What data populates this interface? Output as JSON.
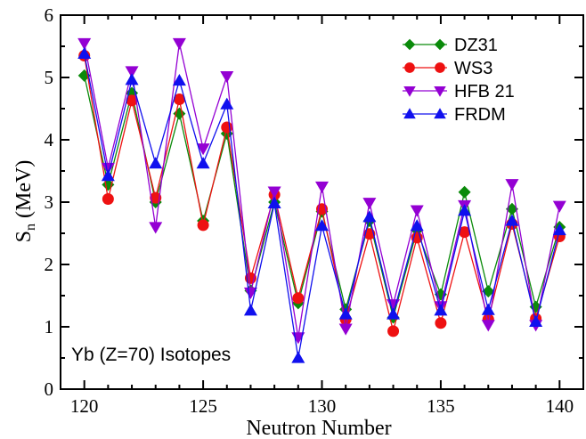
{
  "chart_data": {
    "type": "line",
    "xlabel": "Neutron Number",
    "ylabel_main": "S",
    "ylabel_sub": "n",
    "ylabel_unit": " (MeV)",
    "xlim": [
      119,
      141
    ],
    "ylim": [
      0,
      6
    ],
    "xticks": [
      120,
      125,
      130,
      135,
      140
    ],
    "yticks": [
      0,
      1,
      2,
      3,
      4,
      5,
      6
    ],
    "grid": false,
    "legend_position": "top-right",
    "annotation": "Yb (Z=70) Isotopes",
    "x": [
      120,
      121,
      122,
      123,
      124,
      125,
      126,
      127,
      128,
      129,
      130,
      131,
      132,
      133,
      134,
      135,
      136,
      137,
      138,
      139,
      140
    ],
    "series": [
      {
        "name": "DZ31",
        "color": "#0a8a0a",
        "marker": "diamond",
        "values": [
          5.03,
          3.28,
          4.75,
          3.0,
          4.42,
          2.7,
          4.1,
          1.58,
          3.0,
          1.38,
          2.85,
          1.28,
          2.7,
          1.15,
          2.55,
          1.52,
          3.16,
          1.57,
          2.89,
          1.32,
          2.6
        ]
      },
      {
        "name": "WS3",
        "color": "#ee1111",
        "marker": "circle",
        "values": [
          5.35,
          3.05,
          4.63,
          3.07,
          4.65,
          2.63,
          4.2,
          1.78,
          3.12,
          1.46,
          2.89,
          1.12,
          2.49,
          0.93,
          2.43,
          1.06,
          2.52,
          1.12,
          2.65,
          1.13,
          2.45
        ]
      },
      {
        "name": "HFB 21",
        "color": "#9400d3",
        "marker": "triangle-down",
        "values": [
          5.55,
          3.55,
          5.1,
          2.6,
          5.55,
          3.86,
          5.02,
          1.55,
          3.17,
          0.83,
          3.25,
          0.97,
          2.99,
          1.36,
          2.87,
          1.33,
          2.95,
          1.03,
          3.29,
          1.03,
          2.94
        ]
      },
      {
        "name": "FRDM",
        "color": "#1010ee",
        "marker": "triangle-up",
        "values": [
          5.38,
          3.42,
          4.96,
          3.62,
          4.95,
          3.62,
          4.57,
          1.26,
          2.98,
          0.5,
          2.62,
          1.2,
          2.76,
          1.2,
          2.62,
          1.26,
          2.86,
          1.27,
          2.7,
          1.08,
          2.55
        ]
      }
    ]
  }
}
